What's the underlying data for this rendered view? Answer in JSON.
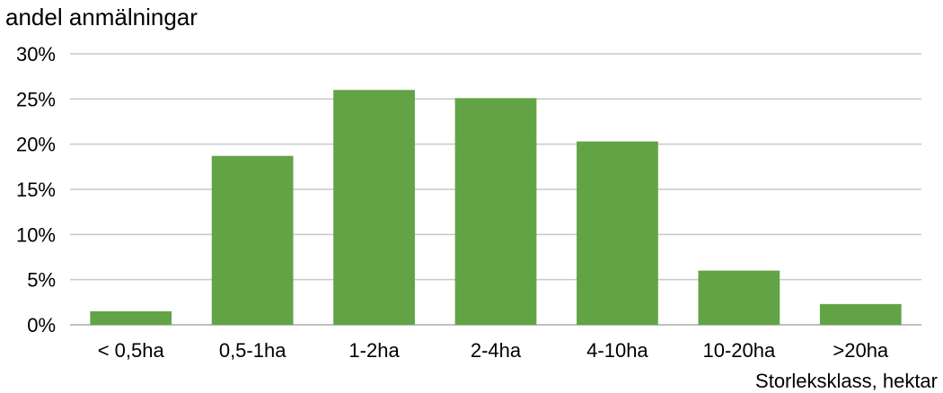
{
  "chart_data": {
    "type": "bar",
    "ylabel": "andel anmälningar",
    "xlabel": "Storleksklass, hektar",
    "categories": [
      "< 0,5ha",
      "0,5-1ha",
      "1-2ha",
      "2-4ha",
      "4-10ha",
      "10-20ha",
      ">20ha"
    ],
    "values": [
      1.5,
      18.7,
      26.0,
      25.1,
      20.3,
      6.0,
      2.3
    ],
    "ylim": [
      0,
      30
    ],
    "yticks": [
      0,
      5,
      10,
      15,
      20,
      25,
      30
    ],
    "ytick_labels": [
      "0%",
      "5%",
      "10%",
      "15%",
      "20%",
      "25%",
      "30%"
    ],
    "grid": true,
    "bar_color": "#62a445",
    "grid_color": "#c8c8c8"
  }
}
